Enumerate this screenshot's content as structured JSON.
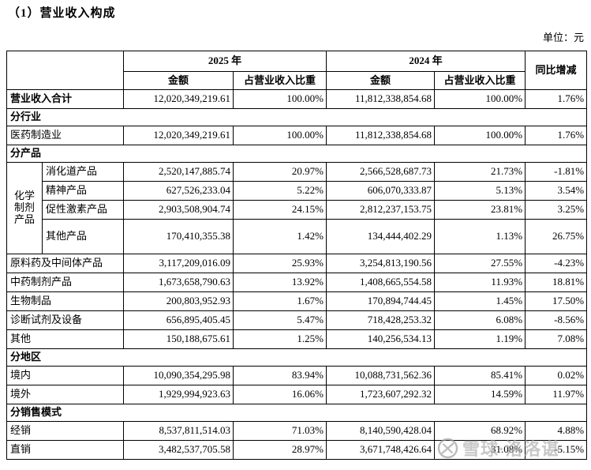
{
  "page": {
    "title": "（1）营业收入构成",
    "unit_label": "单位：元"
  },
  "table": {
    "header": {
      "year_2025": "2025 年",
      "year_2024": "2024 年",
      "amount_2025": "金额",
      "pct_2025": "占营业收入比重",
      "amount_2024": "金额",
      "pct_2024": "占营业收入比重",
      "yoy": "同比增减"
    },
    "rows": [
      {
        "type": "data",
        "bold": true,
        "label": "营业收入合计",
        "v": [
          "12,020,349,219.61",
          "100.00%",
          "11,812,338,854.68",
          "100.00%",
          "1.76%"
        ]
      },
      {
        "type": "section",
        "label": "分行业"
      },
      {
        "type": "data",
        "label": "医药制造业",
        "v": [
          "12,020,349,219.61",
          "100.00%",
          "11,812,338,854.68",
          "100.00%",
          "1.76%"
        ]
      },
      {
        "type": "section",
        "label": "分产品"
      },
      {
        "type": "data",
        "in_group": true,
        "group": "化学\n制剂\n产品",
        "group_rows": 4,
        "label": "消化道产品",
        "v": [
          "2,520,147,885.74",
          "20.97%",
          "2,566,528,687.73",
          "21.73%",
          "-1.81%"
        ]
      },
      {
        "type": "data",
        "in_group": true,
        "label": "精神产品",
        "v": [
          "627,526,233.04",
          "5.22%",
          "606,070,333.87",
          "5.13%",
          "3.54%"
        ]
      },
      {
        "type": "data",
        "in_group": true,
        "label": "促性激素产品",
        "v": [
          "2,903,508,904.74",
          "24.15%",
          "2,812,237,153.75",
          "23.81%",
          "3.25%"
        ]
      },
      {
        "type": "data",
        "in_group": true,
        "tall": true,
        "label": "其他产品",
        "v": [
          "170,410,355.38",
          "1.42%",
          "134,444,402.29",
          "1.13%",
          "26.75%"
        ]
      },
      {
        "type": "data",
        "label": "原料药及中间体产品",
        "v": [
          "3,117,209,016.09",
          "25.93%",
          "3,254,813,190.56",
          "27.55%",
          "-4.23%"
        ]
      },
      {
        "type": "data",
        "label": "中药制剂产品",
        "v": [
          "1,673,658,790.63",
          "13.92%",
          "1,408,665,554.58",
          "11.93%",
          "18.81%"
        ]
      },
      {
        "type": "data",
        "label": "生物制品",
        "v": [
          "200,803,952.93",
          "1.67%",
          "170,894,744.45",
          "1.45%",
          "17.50%"
        ]
      },
      {
        "type": "data",
        "label": "诊断试剂及设备",
        "v": [
          "656,895,405.45",
          "5.47%",
          "718,428,253.32",
          "6.08%",
          "-8.56%"
        ]
      },
      {
        "type": "data",
        "label": "其他",
        "v": [
          "150,188,675.61",
          "1.25%",
          "140,256,534.13",
          "1.19%",
          "7.08%"
        ]
      },
      {
        "type": "section",
        "label": "分地区"
      },
      {
        "type": "data",
        "label": "境内",
        "v": [
          "10,090,354,295.98",
          "83.94%",
          "10,088,731,562.36",
          "85.41%",
          "0.02%"
        ]
      },
      {
        "type": "data",
        "label": "境外",
        "v": [
          "1,929,994,923.63",
          "16.06%",
          "1,723,607,292.32",
          "14.59%",
          "11.97%"
        ]
      },
      {
        "type": "section",
        "label": "分销售模式"
      },
      {
        "type": "data",
        "label": "经销",
        "v": [
          "8,537,811,514.03",
          "71.03%",
          "8,140,590,428.04",
          "68.92%",
          "4.88%"
        ]
      },
      {
        "type": "data",
        "label": "直销",
        "v": [
          "3,482,537,705.58",
          "28.97%",
          "3,671,748,426.64",
          "31.08%",
          "-5.15%"
        ]
      }
    ]
  },
  "watermark": {
    "text": "雪球·洛洛谌",
    "color": "#aaaaaa"
  }
}
